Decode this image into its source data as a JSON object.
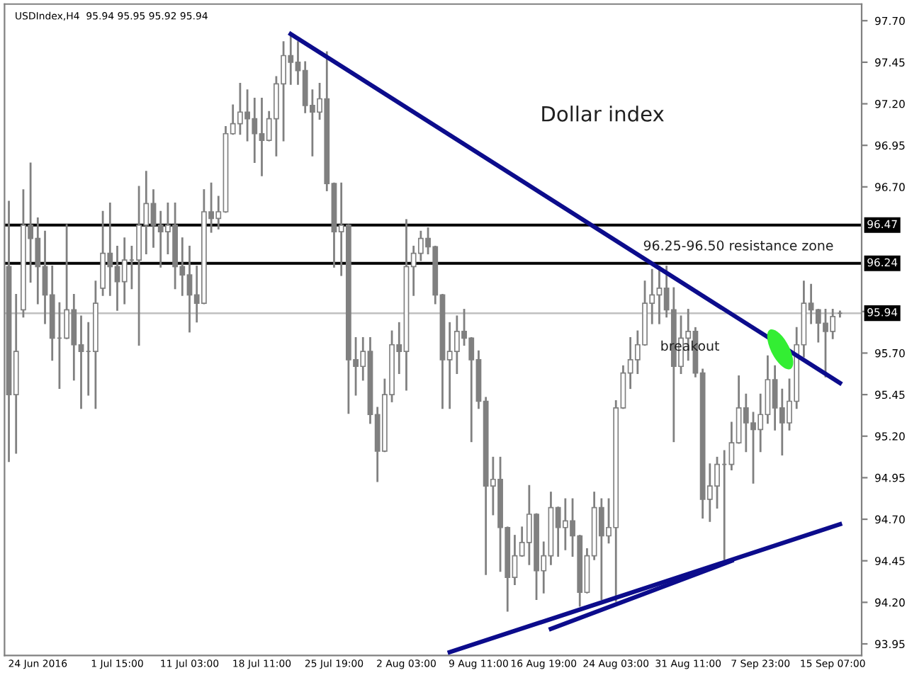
{
  "chart_data": {
    "type": "candlestick",
    "title": "USDIndex,H4  95.94 95.95 95.92 95.94",
    "categories": [
      null,
      null,
      null,
      null,
      "24 Jun 2016",
      null,
      null,
      null,
      null,
      null,
      null,
      null,
      null,
      null,
      null,
      "1 Jul 15:00",
      null,
      null,
      null,
      null,
      null,
      null,
      null,
      null,
      null,
      "11 Jul 03:00",
      null,
      null,
      null,
      null,
      null,
      null,
      null,
      null,
      null,
      "18 Jul 11:00",
      null,
      null,
      null,
      null,
      null,
      null,
      null,
      null,
      null,
      "25 Jul 19:00",
      null,
      null,
      null,
      null,
      null,
      null,
      null,
      null,
      null,
      "2 Aug 03:00",
      null,
      null,
      null,
      null,
      null,
      null,
      null,
      null,
      null,
      "9 Aug 11:00",
      null,
      null,
      null,
      null,
      null,
      null,
      null,
      null,
      "16 Aug 19:00",
      null,
      null,
      null,
      null,
      null,
      null,
      null,
      null,
      null,
      "24 Aug 03:00",
      null,
      null,
      null,
      null,
      null,
      null,
      null,
      null,
      null,
      "31 Aug 11:00",
      null,
      null,
      null,
      null,
      null,
      null,
      null,
      null,
      null,
      "7 Sep 23:00",
      null,
      null,
      null,
      null,
      null,
      null,
      null,
      null,
      null,
      "15 Sep 07:00",
      null
    ],
    "ohlc": [
      [
        96.22,
        96.61,
        95.05,
        95.45
      ],
      [
        95.45,
        96.05,
        95.1,
        95.71
      ],
      [
        95.96,
        96.68,
        95.92,
        96.47
      ],
      [
        96.47,
        96.84,
        96.13,
        96.39
      ],
      [
        96.39,
        96.51,
        96.0,
        96.22
      ],
      [
        96.22,
        96.43,
        95.88,
        96.05
      ],
      [
        96.05,
        96.22,
        95.66,
        95.79
      ],
      [
        95.79,
        96.0,
        95.49,
        95.79
      ],
      [
        95.79,
        96.47,
        95.79,
        95.96
      ],
      [
        95.96,
        96.05,
        95.54,
        95.75
      ],
      [
        95.75,
        95.92,
        95.37,
        95.71
      ],
      [
        95.71,
        95.88,
        95.45,
        95.71
      ],
      [
        95.71,
        96.13,
        95.37,
        96.0
      ],
      [
        96.09,
        96.55,
        96.05,
        96.3
      ],
      [
        96.3,
        96.6,
        96.05,
        96.22
      ],
      [
        96.22,
        96.34,
        95.96,
        96.13
      ],
      [
        96.13,
        96.39,
        96.0,
        96.26
      ],
      [
        96.26,
        96.34,
        96.09,
        96.26
      ],
      [
        96.26,
        96.7,
        95.75,
        96.47
      ],
      [
        96.47,
        96.79,
        96.3,
        96.6
      ],
      [
        96.6,
        96.68,
        96.34,
        96.47
      ],
      [
        96.47,
        96.55,
        96.22,
        96.43
      ],
      [
        96.43,
        96.6,
        96.3,
        96.47
      ],
      [
        96.47,
        96.6,
        96.09,
        96.22
      ],
      [
        96.22,
        96.39,
        96.05,
        96.17
      ],
      [
        96.17,
        96.34,
        95.83,
        96.05
      ],
      [
        96.05,
        96.22,
        95.89,
        96.0
      ],
      [
        96.0,
        96.68,
        96.0,
        96.55
      ],
      [
        96.55,
        96.72,
        96.43,
        96.51
      ],
      [
        96.51,
        96.64,
        96.45,
        96.55
      ],
      [
        96.55,
        97.06,
        96.55,
        97.02
      ],
      [
        97.02,
        97.19,
        97.02,
        97.08
      ],
      [
        97.08,
        97.32,
        97.02,
        97.15
      ],
      [
        97.15,
        97.28,
        96.98,
        97.11
      ],
      [
        97.11,
        97.23,
        96.85,
        97.02
      ],
      [
        97.02,
        97.23,
        96.77,
        96.98
      ],
      [
        96.98,
        97.15,
        96.98,
        97.11
      ],
      [
        97.11,
        97.36,
        96.89,
        97.32
      ],
      [
        97.32,
        97.57,
        96.98,
        97.49
      ],
      [
        97.49,
        97.62,
        97.32,
        97.45
      ],
      [
        97.45,
        97.57,
        97.32,
        97.4
      ],
      [
        97.4,
        97.45,
        97.15,
        97.19
      ],
      [
        97.19,
        97.28,
        96.89,
        97.15
      ],
      [
        97.15,
        97.32,
        97.11,
        97.23
      ],
      [
        97.23,
        97.51,
        96.68,
        96.72
      ],
      [
        96.72,
        96.72,
        96.22,
        96.43
      ],
      [
        96.43,
        96.72,
        96.17,
        96.47
      ],
      [
        96.47,
        96.47,
        95.34,
        95.66
      ],
      [
        95.66,
        95.79,
        95.45,
        95.62
      ],
      [
        95.62,
        95.79,
        95.54,
        95.71
      ],
      [
        95.71,
        95.79,
        95.28,
        95.33
      ],
      [
        95.33,
        95.37,
        94.93,
        95.11
      ],
      [
        95.11,
        95.54,
        95.11,
        95.45
      ],
      [
        95.45,
        95.83,
        95.41,
        95.75
      ],
      [
        95.75,
        95.88,
        95.58,
        95.71
      ],
      [
        95.71,
        96.5,
        95.48,
        96.22
      ],
      [
        96.22,
        96.34,
        96.05,
        96.3
      ],
      [
        96.3,
        96.43,
        96.26,
        96.39
      ],
      [
        96.39,
        96.45,
        96.3,
        96.34
      ],
      [
        96.34,
        96.34,
        96.0,
        96.05
      ],
      [
        96.05,
        96.05,
        95.37,
        95.66
      ],
      [
        95.66,
        95.88,
        95.37,
        95.71
      ],
      [
        95.71,
        95.92,
        95.58,
        95.83
      ],
      [
        95.83,
        95.96,
        95.75,
        95.79
      ],
      [
        95.79,
        95.79,
        95.17,
        95.66
      ],
      [
        95.66,
        95.71,
        95.37,
        95.41
      ],
      [
        95.41,
        95.43,
        94.37,
        94.9
      ],
      [
        94.9,
        95.07,
        94.73,
        94.94
      ],
      [
        94.94,
        95.07,
        94.39,
        94.65
      ],
      [
        94.65,
        94.65,
        94.15,
        94.35
      ],
      [
        94.35,
        94.6,
        94.31,
        94.48
      ],
      [
        94.48,
        94.65,
        94.48,
        94.56
      ],
      [
        94.56,
        94.9,
        94.43,
        94.73
      ],
      [
        94.73,
        94.73,
        94.22,
        94.39
      ],
      [
        94.39,
        94.56,
        94.26,
        94.48
      ],
      [
        94.48,
        94.86,
        94.43,
        94.77
      ],
      [
        94.77,
        94.77,
        94.48,
        94.65
      ],
      [
        94.65,
        94.82,
        94.52,
        94.69
      ],
      [
        94.69,
        94.82,
        94.48,
        94.6
      ],
      [
        94.6,
        94.6,
        94.18,
        94.26
      ],
      [
        94.26,
        94.52,
        94.26,
        94.48
      ],
      [
        94.48,
        94.86,
        94.46,
        94.77
      ],
      [
        94.77,
        94.82,
        94.22,
        94.6
      ],
      [
        94.6,
        94.82,
        94.56,
        94.65
      ],
      [
        94.65,
        95.41,
        94.21,
        95.37
      ],
      [
        95.37,
        95.62,
        95.37,
        95.58
      ],
      [
        95.58,
        95.79,
        95.49,
        95.66
      ],
      [
        95.66,
        95.83,
        95.58,
        95.75
      ],
      [
        95.75,
        96.13,
        95.75,
        96.0
      ],
      [
        96.0,
        96.2,
        95.88,
        96.05
      ],
      [
        96.05,
        96.22,
        95.88,
        96.09
      ],
      [
        96.09,
        96.22,
        95.92,
        95.96
      ],
      [
        95.96,
        96.09,
        95.17,
        95.62
      ],
      [
        95.62,
        95.92,
        95.58,
        95.79
      ],
      [
        95.79,
        95.96,
        95.66,
        95.83
      ],
      [
        95.83,
        95.85,
        95.56,
        95.58
      ],
      [
        95.58,
        95.6,
        94.71,
        94.82
      ],
      [
        94.82,
        95.03,
        94.69,
        94.9
      ],
      [
        94.9,
        95.07,
        94.77,
        95.03
      ],
      [
        95.03,
        95.11,
        94.46,
        95.03
      ],
      [
        95.03,
        95.28,
        95.0,
        95.16
      ],
      [
        95.16,
        95.56,
        95.16,
        95.37
      ],
      [
        95.37,
        95.45,
        95.11,
        95.28
      ],
      [
        95.28,
        95.34,
        94.92,
        95.24
      ],
      [
        95.24,
        95.45,
        95.11,
        95.33
      ],
      [
        95.33,
        95.68,
        95.28,
        95.54
      ],
      [
        95.54,
        95.62,
        95.24,
        95.37
      ],
      [
        95.37,
        95.48,
        95.09,
        95.28
      ],
      [
        95.28,
        95.54,
        95.24,
        95.41
      ],
      [
        95.41,
        95.85,
        95.37,
        95.75
      ],
      [
        95.75,
        96.13,
        95.68,
        96.0
      ],
      [
        96.0,
        96.11,
        95.88,
        95.96
      ],
      [
        95.96,
        95.96,
        95.77,
        95.88
      ],
      [
        95.88,
        95.96,
        95.56,
        95.83
      ],
      [
        95.83,
        95.96,
        95.79,
        95.92
      ],
      [
        95.94,
        95.95,
        95.92,
        95.94
      ]
    ],
    "color": "#808080",
    "series": [
      {
        "type": "line",
        "color": "#0c0c8c",
        "values": [
          null,
          null,
          null,
          null,
          null,
          null,
          null,
          null,
          null,
          null,
          null,
          null,
          null,
          null,
          null,
          null,
          null,
          null,
          null,
          null,
          null,
          null,
          null,
          null,
          null,
          null,
          null,
          null,
          null,
          null,
          null,
          null,
          null,
          null,
          null,
          null,
          null,
          null,
          null,
          97.62,
          null,
          null,
          null,
          null,
          null,
          null,
          null,
          null,
          null,
          null,
          null,
          null,
          null,
          null,
          null,
          null,
          null,
          null,
          null,
          null,
          null,
          null,
          null,
          null,
          null,
          null,
          null,
          null,
          null,
          null,
          null,
          null,
          null,
          null,
          null,
          null,
          null,
          null,
          null,
          null,
          null,
          null,
          null,
          null,
          null,
          null,
          null,
          null,
          null,
          null,
          null,
          null,
          null,
          null,
          null,
          null,
          null,
          null,
          null,
          null,
          null,
          null,
          null,
          null,
          null,
          null,
          null,
          null,
          null,
          null,
          null,
          null,
          null,
          null,
          null,
          95.52
        ]
      },
      {
        "type": "line",
        "color": "#0c0c8c",
        "values": [
          null,
          null,
          null,
          null,
          null,
          null,
          null,
          null,
          null,
          null,
          null,
          null,
          null,
          null,
          null,
          null,
          null,
          null,
          null,
          null,
          null,
          null,
          null,
          null,
          null,
          null,
          null,
          null,
          null,
          null,
          null,
          null,
          null,
          null,
          null,
          null,
          null,
          null,
          null,
          null,
          null,
          null,
          null,
          null,
          null,
          null,
          null,
          null,
          null,
          null,
          null,
          null,
          null,
          null,
          null,
          null,
          null,
          null,
          null,
          null,
          null,
          93.9,
          null,
          null,
          null,
          null,
          null,
          null,
          null,
          null,
          null,
          null,
          null,
          null,
          null,
          null,
          null,
          null,
          null,
          null,
          null,
          null,
          null,
          null,
          null,
          null,
          null,
          null,
          null,
          null,
          null,
          null,
          null,
          null,
          null,
          null,
          null,
          null,
          null,
          null,
          null,
          null,
          null,
          null,
          null,
          null,
          null,
          null,
          null,
          null,
          null,
          null,
          null,
          null,
          null,
          94.67
        ]
      },
      {
        "type": "line",
        "color": "#0c0c8c",
        "values": [
          null,
          null,
          null,
          null,
          null,
          null,
          null,
          null,
          null,
          null,
          null,
          null,
          null,
          null,
          null,
          null,
          null,
          null,
          null,
          null,
          null,
          null,
          null,
          null,
          null,
          null,
          null,
          null,
          null,
          null,
          null,
          null,
          null,
          null,
          null,
          null,
          null,
          null,
          null,
          null,
          null,
          null,
          null,
          null,
          null,
          null,
          null,
          null,
          null,
          null,
          null,
          null,
          null,
          null,
          null,
          null,
          null,
          null,
          null,
          null,
          null,
          null,
          null,
          null,
          null,
          null,
          null,
          null,
          null,
          null,
          null,
          null,
          null,
          null,
          null,
          94.04,
          null,
          null,
          null,
          null,
          null,
          null,
          null,
          null,
          null,
          null,
          null,
          null,
          null,
          null,
          null,
          null,
          null,
          null,
          null,
          null,
          null,
          null,
          null,
          null,
          94.45,
          null,
          null,
          null,
          null,
          null,
          null,
          null,
          null,
          null,
          null,
          null,
          null,
          null,
          null,
          null
        ]
      }
    ],
    "ref_lines": [
      {
        "axis": "y",
        "value": 96.47,
        "label": "96.47",
        "color": "#000000"
      },
      {
        "axis": "y",
        "value": 96.24,
        "label": "96.24",
        "color": "#000000"
      },
      {
        "axis": "y",
        "value": 95.94,
        "label": "95.94",
        "color": "#c0c0c0"
      }
    ],
    "annotations": [
      "Dollar index",
      "96.25-96.50 resistance zone",
      "breakout"
    ],
    "ylim": [
      93.88,
      97.8
    ],
    "yticks": [
      {
        "value": 93.95,
        "label": "93.95"
      },
      {
        "value": 94.2,
        "label": "94.20"
      },
      {
        "value": 94.45,
        "label": "94.45"
      },
      {
        "value": 94.7,
        "label": "94.70"
      },
      {
        "value": 94.95,
        "label": "94.95"
      },
      {
        "value": 95.2,
        "label": "95.20"
      },
      {
        "value": 95.45,
        "label": "95.45"
      },
      {
        "value": 95.7,
        "label": "95.70"
      },
      {
        "value": 95.95,
        "label": null
      },
      {
        "value": 96.7,
        "label": "96.70"
      },
      {
        "value": 96.95,
        "label": "96.95"
      },
      {
        "value": 97.2,
        "label": "97.20"
      },
      {
        "value": 97.45,
        "label": "97.45"
      },
      {
        "value": 97.7,
        "label": "97.70"
      }
    ],
    "grid": false,
    "legend": false
  }
}
